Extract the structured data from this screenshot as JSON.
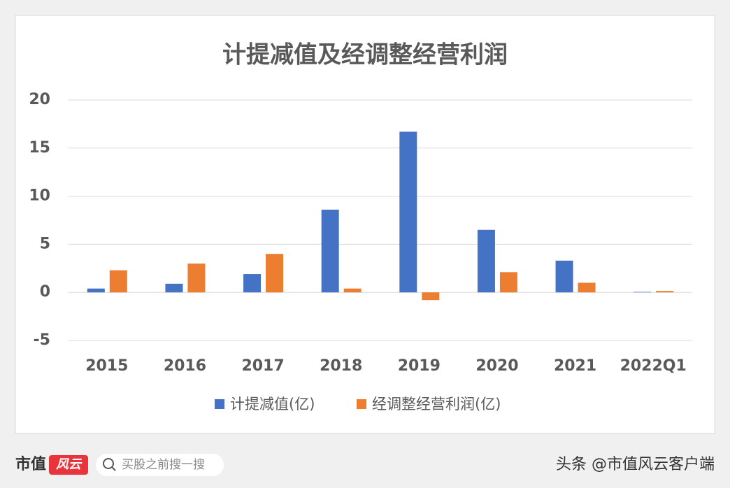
{
  "chart_data": {
    "type": "bar",
    "title": "计提减值及经调整经营利润",
    "categories": [
      "2015",
      "2016",
      "2017",
      "2018",
      "2019",
      "2020",
      "2021",
      "2022Q1"
    ],
    "series": [
      {
        "name": "计提减值(亿)",
        "color": "#4472c4",
        "values": [
          0.4,
          0.9,
          1.9,
          8.6,
          16.7,
          6.5,
          3.3,
          0.05
        ]
      },
      {
        "name": "经调整经营利润(亿)",
        "color": "#ed7d31",
        "values": [
          2.3,
          3.0,
          4.0,
          0.4,
          -0.8,
          2.1,
          1.0,
          0.15
        ]
      }
    ],
    "ylim": [
      -5,
      20
    ],
    "yticks": [
      -5,
      0,
      5,
      10,
      15,
      20
    ],
    "grid": true,
    "legend": "bottom"
  },
  "footer": {
    "logo": "市值",
    "logo_badge": "风云",
    "search": "买股之前搜一搜",
    "credit": "头条 @市值风云客户端"
  }
}
